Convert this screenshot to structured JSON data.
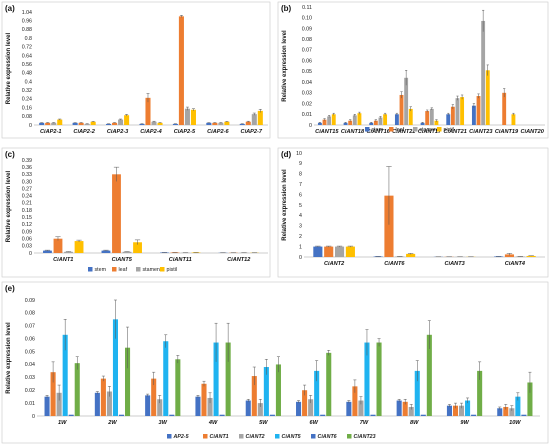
{
  "colors": {
    "stem": "#4472c4",
    "leaf": "#ed7d31",
    "stamen": "#a5a5a5",
    "pistil": "#ffc000",
    "AP2-5": "#4472c4",
    "CiANT1": "#ed7d31",
    "CiANT2": "#a5a5a5",
    "CiANT5": "#1fb3f0",
    "CiANT6": "#4472c4",
    "CiANT23": "#70ad47"
  },
  "chart_data": [
    {
      "type": "bar",
      "panel": "(a)",
      "ylabel": "Relative expression level",
      "ylim": [
        0,
        1.04
      ],
      "yticks": [
        "0",
        "0.02",
        "0.04",
        "0.06",
        "0.08",
        "0.1",
        "0.12",
        "0.14",
        "0.16",
        "0.18",
        "0.2",
        "0.22",
        "0.24",
        "0.26",
        "0.28",
        "0.3",
        "0.32",
        "0.34",
        "0.36",
        "0.38",
        "0.4",
        "0.42",
        "0.44",
        "0.46",
        "0.48",
        "0.5",
        "0.52",
        "0.54",
        "0.56",
        "0.58",
        "0.6",
        "0.62",
        "0.64",
        "0.66",
        "0.68",
        "0.7",
        "0.72",
        "0.74",
        "0.76",
        "0.78",
        "0.8",
        "0.82",
        "0.84",
        "0.86",
        "0.88",
        "0.9",
        "0.92",
        "0.94",
        "0.96",
        "0.98",
        "1",
        "1.02",
        "1.04"
      ],
      "categories": [
        "CiAP2-1",
        "CiAP2-2",
        "CiAP2-3",
        "CiAP2-4",
        "CiAP2-5",
        "CiAP2-6",
        "CiAP2-7"
      ],
      "legend": [
        "stem",
        "leaf",
        "stamen",
        "pistil"
      ],
      "series": [
        {
          "name": "stem",
          "values": [
            0.02,
            0.02,
            0.01,
            0.01,
            0.01,
            0.02,
            0.01
          ],
          "errors": [
            0.002,
            0.002,
            0.002,
            0.002,
            0.002,
            0.002,
            0.002
          ]
        },
        {
          "name": "leaf",
          "values": [
            0.02,
            0.02,
            0.02,
            0.25,
            1.0,
            0.02,
            0.03
          ],
          "errors": [
            0.003,
            0.003,
            0.003,
            0.04,
            0.01,
            0.003,
            0.005
          ]
        },
        {
          "name": "stamen",
          "values": [
            0.02,
            0.01,
            0.05,
            0.03,
            0.15,
            0.02,
            0.1
          ],
          "errors": [
            0.003,
            0.002,
            0.005,
            0.005,
            0.015,
            0.003,
            0.01
          ]
        },
        {
          "name": "pistil",
          "values": [
            0.05,
            0.03,
            0.09,
            0.02,
            0.14,
            0.03,
            0.13
          ],
          "errors": [
            0.005,
            0.003,
            0.008,
            0.003,
            0.01,
            0.003,
            0.015
          ]
        }
      ]
    },
    {
      "type": "bar",
      "panel": "(b)",
      "ylabel": "Relative expression level",
      "ylim": [
        0,
        0.11
      ],
      "yticks": [
        "0",
        "0.01",
        "0.02",
        "0.03",
        "0.04",
        "0.05",
        "0.06",
        "0.07",
        "0.08",
        "0.09",
        "0.10",
        "0.11"
      ],
      "categories": [
        "CiANT15",
        "CiANT18",
        "CiANT16",
        "CiANT22",
        "CiANT17",
        "CiANT21",
        "CiANT23",
        "CiANT19",
        "CiANT20"
      ],
      "legend": [
        "stem",
        "leaf",
        "stamen",
        "pistil"
      ],
      "series": [
        {
          "name": "stem",
          "values": [
            0.002,
            0.002,
            0.002,
            0.01,
            0.002,
            0.01,
            0.018,
            0.0,
            0.0
          ],
          "errors": [
            0.0005,
            0.0005,
            0.0005,
            0.001,
            0.0005,
            0.001,
            0.002,
            0,
            0
          ]
        },
        {
          "name": "leaf",
          "values": [
            0.005,
            0.004,
            0.004,
            0.028,
            0.013,
            0.017,
            0.027,
            0.03,
            0.0
          ],
          "errors": [
            0.001,
            0.001,
            0.001,
            0.003,
            0.001,
            0.002,
            0.002,
            0.004,
            0
          ]
        },
        {
          "name": "stamen",
          "values": [
            0.008,
            0.009,
            0.007,
            0.044,
            0.015,
            0.025,
            0.097,
            0.0,
            0.0
          ],
          "errors": [
            0.001,
            0.001,
            0.001,
            0.007,
            0.001,
            0.002,
            0.01,
            0,
            0
          ]
        },
        {
          "name": "pistil",
          "values": [
            0.01,
            0.011,
            0.01,
            0.015,
            0.004,
            0.026,
            0.051,
            0.01,
            0.0
          ],
          "errors": [
            0.001,
            0.001,
            0.001,
            0.002,
            0.001,
            0.002,
            0.005,
            0.001,
            0
          ]
        }
      ]
    },
    {
      "type": "bar",
      "panel": "(c)",
      "ylabel": "Relative expression level",
      "ylim": [
        0,
        0.39
      ],
      "yticks": [
        "0",
        "0.03",
        "0.06",
        "0.09",
        "0.12",
        "0.15",
        "0.18",
        "0.21",
        "0.24",
        "0.27",
        "0.30",
        "0.33",
        "0.36",
        "0.39"
      ],
      "categories": [
        "CiANT1",
        "CiANT5",
        "CiANT11",
        "CiANT12"
      ],
      "legend": [
        "stem",
        "leaf",
        "stamen",
        "pistil"
      ],
      "series": [
        {
          "name": "stem",
          "values": [
            0.01,
            0.01,
            0.002,
            0.001
          ],
          "errors": [
            0.002,
            0.002,
            0.0005,
            0.0005
          ]
        },
        {
          "name": "leaf",
          "values": [
            0.06,
            0.33,
            0.002,
            0.001
          ],
          "errors": [
            0.008,
            0.03,
            0.0005,
            0.0005
          ]
        },
        {
          "name": "stamen",
          "values": [
            0.005,
            0.005,
            0.001,
            0.001
          ],
          "errors": [
            0.001,
            0.001,
            0.0005,
            0.0005
          ]
        },
        {
          "name": "pistil",
          "values": [
            0.05,
            0.045,
            0.002,
            0.001
          ],
          "errors": [
            0.004,
            0.01,
            0.0005,
            0.0005
          ]
        }
      ]
    },
    {
      "type": "bar",
      "panel": "(d)",
      "ylabel": "Relative expression level",
      "ylim": [
        0,
        10
      ],
      "yticks": [
        "0",
        "1",
        "2",
        "3",
        "4",
        "5",
        "6",
        "7",
        "8",
        "9",
        "10"
      ],
      "categories": [
        "CiANT2",
        "CiANT6",
        "CiANT3",
        "CiANT4"
      ],
      "legend": [
        "stem",
        "leaf",
        "stamen",
        "pistil"
      ],
      "series": [
        {
          "name": "stem",
          "values": [
            1.0,
            0.05,
            0.02,
            0.05
          ],
          "errors": [
            0.05,
            0.01,
            0.005,
            0.01
          ]
        },
        {
          "name": "leaf",
          "values": [
            1.0,
            5.9,
            0.02,
            0.25
          ],
          "errors": [
            0.05,
            2.8,
            0.005,
            0.1
          ]
        },
        {
          "name": "stamen",
          "values": [
            1.0,
            0.05,
            0.02,
            0.05
          ],
          "errors": [
            0.05,
            0.01,
            0.005,
            0.01
          ]
        },
        {
          "name": "pistil",
          "values": [
            1.0,
            0.3,
            0.02,
            0.1
          ],
          "errors": [
            0.05,
            0.05,
            0.005,
            0.02
          ]
        }
      ]
    },
    {
      "type": "bar",
      "panel": "(e)",
      "ylabel": "Relative expression level",
      "ylim": [
        0,
        0.09
      ],
      "yticks": [
        "0",
        "0.01",
        "0.02",
        "0.03",
        "0.04",
        "0.05",
        "0.06",
        "0.07",
        "0.08",
        "0.09"
      ],
      "categories": [
        "1W",
        "2W",
        "3W",
        "4W",
        "5W",
        "6W",
        "7W",
        "8W",
        "9W",
        "10W"
      ],
      "legend": [
        "AP2-5",
        "CiANT1",
        "CiANT2",
        "CiANT5",
        "CiANT6",
        "CiANT23"
      ],
      "series": [
        {
          "name": "AP2-5",
          "values": [
            0.015,
            0.018,
            0.016,
            0.015,
            0.012,
            0.011,
            0.011,
            0.012,
            0.008,
            0.006
          ],
          "errors": [
            0.001,
            0.001,
            0.001,
            0.001,
            0.001,
            0.001,
            0.001,
            0.001,
            0.001,
            0.001
          ]
        },
        {
          "name": "CiANT1",
          "values": [
            0.034,
            0.029,
            0.029,
            0.025,
            0.031,
            0.02,
            0.023,
            0.011,
            0.008,
            0.007
          ],
          "errors": [
            0.008,
            0.002,
            0.005,
            0.002,
            0.007,
            0.004,
            0.005,
            0.002,
            0.002,
            0.002
          ]
        },
        {
          "name": "CiANT2",
          "values": [
            0.018,
            0.019,
            0.013,
            0.014,
            0.01,
            0.013,
            0.012,
            0.007,
            0.008,
            0.006
          ],
          "errors": [
            0.006,
            0.004,
            0.003,
            0.004,
            0.003,
            0.003,
            0.003,
            0.002,
            0.002,
            0.002
          ]
        },
        {
          "name": "CiANT5",
          "values": [
            0.063,
            0.075,
            0.058,
            0.057,
            0.038,
            0.035,
            0.057,
            0.035,
            0.012,
            0.015
          ],
          "errors": [
            0.012,
            0.015,
            0.005,
            0.015,
            0.006,
            0.008,
            0.01,
            0.008,
            0.002,
            0.003
          ]
        },
        {
          "name": "CiANT6",
          "values": [
            0.001,
            0.001,
            0.001,
            0.001,
            0.001,
            0.001,
            0.001,
            0.001,
            0.001,
            0.001
          ],
          "errors": [
            0,
            0,
            0,
            0,
            0,
            0,
            0,
            0,
            0,
            0
          ]
        },
        {
          "name": "CiANT23",
          "values": [
            0.041,
            0.053,
            0.044,
            0.057,
            0.04,
            0.049,
            0.057,
            0.063,
            0.035,
            0.026
          ],
          "errors": [
            0.005,
            0.016,
            0.003,
            0.015,
            0.006,
            0.002,
            0.003,
            0.011,
            0.007,
            0.008
          ]
        }
      ]
    }
  ]
}
